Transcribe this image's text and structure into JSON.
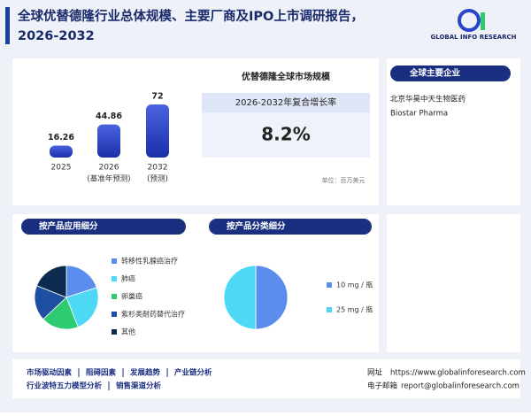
{
  "header": {
    "title_line1": "全球优替德隆行业总体规模、主要厂商及IPO上市调研报告，",
    "title_line2": "2026-2032",
    "logo_text": "GLOBAL INFO RESEARCH"
  },
  "chart_data": [
    {
      "type": "bar",
      "title": "优替德隆全球市场规模",
      "categories": [
        "2025",
        "2026",
        "2032"
      ],
      "category_notes": [
        null,
        "(基准年预测)",
        "(预测)"
      ],
      "values": [
        16.26,
        44.86,
        72
      ],
      "color": "#2a45c8",
      "unit": "单位：百万美元"
    },
    {
      "type": "pie",
      "title": "按产品应用细分",
      "categories": [
        "转移性乳腺癌治疗",
        "肺癌",
        "卵巢癌",
        "紫杉类耐药替代治疗",
        "其他"
      ],
      "values": [
        20,
        24,
        19,
        18,
        19
      ],
      "colors": [
        "#5b8def",
        "#4dd9f5",
        "#2ecc71",
        "#1f4fa0",
        "#0d2a4f"
      ]
    },
    {
      "type": "pie",
      "title": "按产品分类细分",
      "categories": [
        "10 mg / 瓶",
        "25 mg / 瓶"
      ],
      "values": [
        50,
        50
      ],
      "colors": [
        "#5b8def",
        "#4dd9f5"
      ]
    }
  ],
  "cagr": {
    "label": "2026-2032年复合增长率",
    "value": "8.2%"
  },
  "companies": {
    "title": "全球主要企业",
    "items": [
      "北京华昊中天生物医药",
      "Biostar Pharma"
    ]
  },
  "footer": {
    "links_row1": [
      "市场驱动因素",
      "阻碍因素",
      "发展趋势",
      "产业链分析"
    ],
    "links_row2": [
      "行业波特五力模型分析",
      "销售渠道分析"
    ],
    "website_label": "网址",
    "website": "https://www.globalinforesearch.com",
    "email_label": "电子邮箱",
    "email": "report@globalinforesearch.com"
  }
}
